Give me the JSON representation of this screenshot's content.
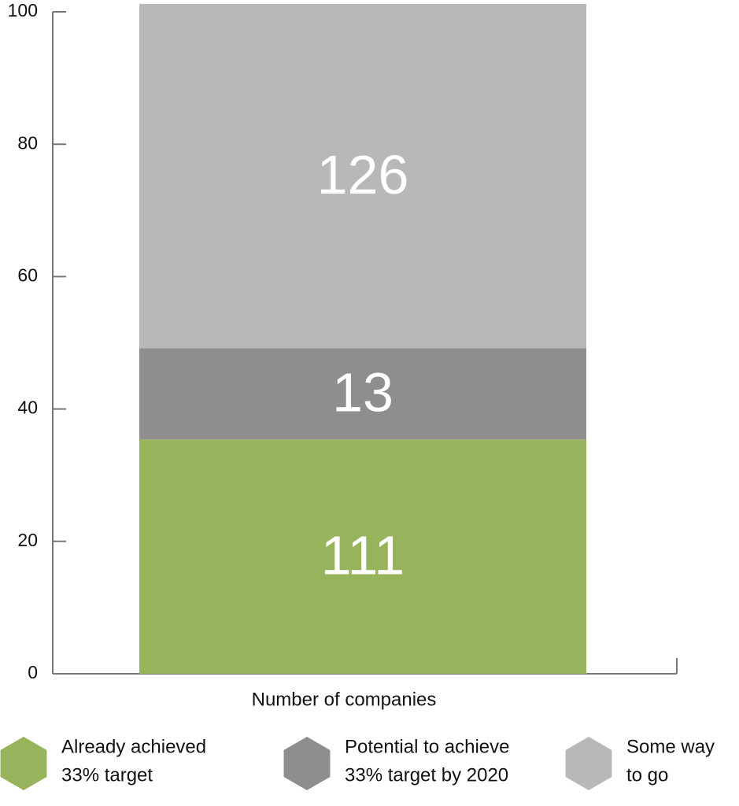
{
  "chart_data": {
    "type": "stacked-bar",
    "x_label": "Number of companies",
    "ylim": [
      0,
      100
    ],
    "yticks": [
      0,
      20,
      40,
      60,
      80,
      100
    ],
    "series": [
      {
        "name": [
          "Already achieved",
          "33% target"
        ],
        "color": "#97b35b",
        "values": [
          35.4
        ],
        "count": "111"
      },
      {
        "name": [
          "Potential to achieve",
          "33% target by 2020"
        ],
        "color": "#8e8e8e",
        "values": [
          13.8
        ],
        "count": "13"
      },
      {
        "name": [
          "Some way",
          "to go"
        ],
        "color": "#b8b8b8",
        "values": [
          52.0
        ],
        "count": "126"
      }
    ]
  }
}
